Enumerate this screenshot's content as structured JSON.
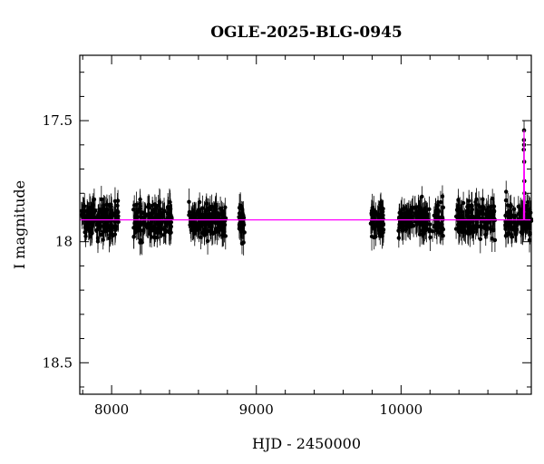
{
  "chart_data": {
    "type": "scatter",
    "title": "OGLE-2025-BLG-0945",
    "xlabel": "HJD - 2450000",
    "ylabel": "I magnitude",
    "xlim": [
      7780,
      10900
    ],
    "ylim": [
      18.63,
      17.23
    ],
    "y_inverted": true,
    "x_ticks": [
      8000,
      9000,
      10000
    ],
    "x_tick_labels": [
      "8000",
      "9000",
      "10000"
    ],
    "x_minor_step": 200,
    "y_ticks": [
      17.5,
      18,
      18.5
    ],
    "y_tick_labels": [
      "17.5",
      "18",
      "18.5"
    ],
    "y_minor_step": 0.1,
    "grid": false,
    "legend": "none",
    "baseline_mag": 17.91,
    "seasons": [
      {
        "start": 7790,
        "end": 8050,
        "n": 170
      },
      {
        "start": 8150,
        "end": 8420,
        "n": 170
      },
      {
        "start": 8530,
        "end": 8790,
        "n": 170
      },
      {
        "start": 8880,
        "end": 8920,
        "n": 40
      },
      {
        "start": 9790,
        "end": 9880,
        "n": 70
      },
      {
        "start": 9980,
        "end": 10300,
        "n": 180
      },
      {
        "start": 10380,
        "end": 10650,
        "n": 170
      },
      {
        "start": 10720,
        "end": 10900,
        "n": 120
      }
    ],
    "scatter_sigma": 0.035,
    "error_bar": 0.045,
    "event": {
      "t0": 10850,
      "points": [
        {
          "x": 10848,
          "y": 17.62
        },
        {
          "x": 10849,
          "y": 17.58
        },
        {
          "x": 10850,
          "y": 17.54
        },
        {
          "x": 10850,
          "y": 17.6
        },
        {
          "x": 10851,
          "y": 17.67
        },
        {
          "x": 10852,
          "y": 17.75
        },
        {
          "x": 10853,
          "y": 17.8
        }
      ]
    },
    "series": [
      {
        "type": "scatter",
        "color": "#000000"
      },
      {
        "type": "line",
        "color": "#ff00ff"
      }
    ]
  }
}
